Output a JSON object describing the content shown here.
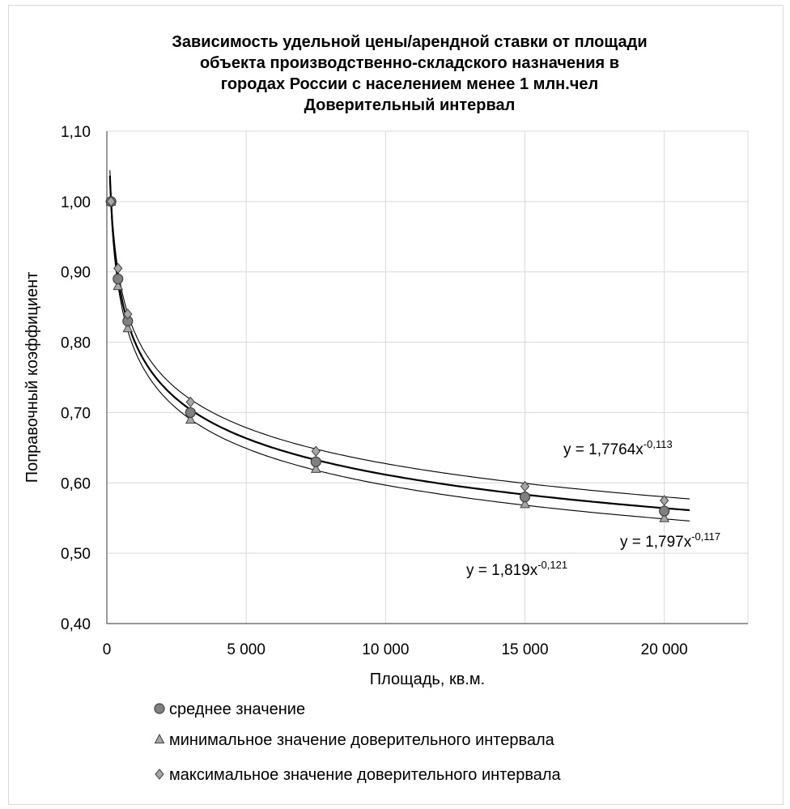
{
  "chart_data": {
    "type": "scatter",
    "title_lines": [
      "Зависимость удельной цены/арендной ставки от площади",
      "объекта производственно-складского назначения  в",
      "городах России с населением менее 1 млн.чел",
      "Доверительный интервал"
    ],
    "xlabel": "Площадь, кв.м.",
    "ylabel": "Поправочный коэффициент",
    "xlim": [
      0,
      23000
    ],
    "ylim": [
      0.4,
      1.1
    ],
    "xticks": [
      0,
      5000,
      10000,
      15000,
      20000
    ],
    "xtick_labels": [
      "0",
      "5 000",
      "10 000",
      "15 000",
      "20 000"
    ],
    "yticks": [
      0.4,
      0.5,
      0.6,
      0.7,
      0.8,
      0.9,
      1.0,
      1.1
    ],
    "ytick_labels": [
      "0,40",
      "0,50",
      "0,60",
      "0,70",
      "0,80",
      "0,90",
      "1,00",
      "1,10"
    ],
    "grid": true,
    "legend_position": "bottom",
    "series": [
      {
        "name": "среднее значение",
        "marker": "circle",
        "color": "#808080",
        "x": [
          150,
          400,
          750,
          3000,
          7500,
          15000,
          20000
        ],
        "y": [
          1.0,
          0.89,
          0.83,
          0.7,
          0.63,
          0.58,
          0.56
        ],
        "trend": {
          "a": 1.797,
          "b": -0.117,
          "label": "y = 1,797x",
          "exp": "-0,117",
          "stroke": 2.2
        }
      },
      {
        "name": "минимальное значение доверительного интервала",
        "marker": "triangle",
        "color": "#a6a6a6",
        "x": [
          150,
          400,
          750,
          3000,
          7500,
          15000,
          20000
        ],
        "y": [
          1.0,
          0.88,
          0.82,
          0.69,
          0.62,
          0.57,
          0.55
        ],
        "trend": {
          "a": 1.819,
          "b": -0.121,
          "label": "y = 1,819x",
          "exp": "-0,121",
          "stroke": 1.1
        }
      },
      {
        "name": "максимальное значение доверительного интервала",
        "marker": "diamond",
        "color": "#a6a6a6",
        "x": [
          150,
          400,
          750,
          3000,
          7500,
          15000,
          20000
        ],
        "y": [
          1.0,
          0.905,
          0.84,
          0.715,
          0.645,
          0.595,
          0.575
        ],
        "trend": {
          "a": 1.7764,
          "b": -0.113,
          "label": "y = 1,7764x",
          "exp": "-0,113",
          "stroke": 1.1
        }
      }
    ]
  }
}
